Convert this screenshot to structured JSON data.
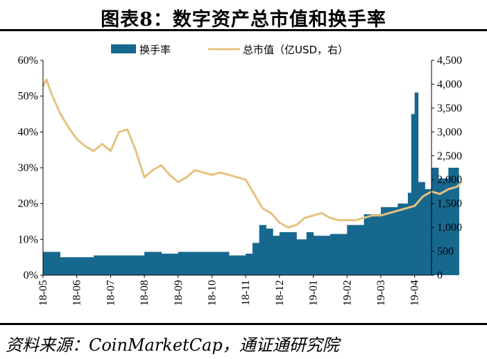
{
  "title": "图表8：数字资产总市值和换手率",
  "source": "资料来源：CoinMarketCap，通证通研究院",
  "colors": {
    "bar": "#17688f",
    "line": "#e5c27e"
  },
  "chart_data": {
    "type": "bar+line",
    "x_labels": [
      "18-05",
      "18-06",
      "18-07",
      "18-08",
      "18-09",
      "18-10",
      "18-11",
      "18-12",
      "19-01",
      "19-02",
      "19-03",
      "19-04"
    ],
    "left_axis": {
      "ticks": [
        "0%",
        "10%",
        "20%",
        "30%",
        "40%",
        "50%",
        "60%"
      ],
      "ylim": [
        0,
        60
      ],
      "unit": "%"
    },
    "right_axis": {
      "ticks": [
        "0",
        "500",
        "1,000",
        "1,500",
        "2,000",
        "2,500",
        "3,000",
        "3,500",
        "4,000",
        "4,500"
      ],
      "ylim": [
        0,
        4500
      ]
    },
    "series": [
      {
        "name": "换手率",
        "type": "bar",
        "axis": "left",
        "x": [
          0.0,
          0.5,
          1.0,
          1.5,
          2.0,
          2.5,
          3.0,
          3.5,
          4.0,
          4.5,
          5.0,
          5.5,
          6.0,
          6.2,
          6.4,
          6.6,
          6.8,
          7.0,
          7.3,
          7.5,
          7.8,
          8.0,
          8.5,
          9.0,
          9.5,
          10.0,
          10.5,
          10.8,
          10.9,
          11.0,
          11.1,
          11.3,
          11.5,
          11.7,
          12.0,
          12.3
        ],
        "values": [
          6.5,
          5,
          5,
          5.5,
          5.5,
          5.5,
          6.5,
          6,
          6.5,
          6.5,
          6.5,
          5.5,
          6,
          9,
          14,
          13,
          11,
          12,
          12,
          10,
          12,
          11,
          11.5,
          14,
          17,
          19,
          20,
          23,
          45,
          51,
          26,
          24,
          30,
          27,
          30,
          28
        ]
      },
      {
        "name": "总市值（亿USD，右）",
        "type": "line",
        "axis": "right",
        "x": [
          0.0,
          0.1,
          0.25,
          0.5,
          0.75,
          1.0,
          1.25,
          1.5,
          1.75,
          2.0,
          2.25,
          2.5,
          2.75,
          3.0,
          3.25,
          3.5,
          3.75,
          4.0,
          4.25,
          4.5,
          4.75,
          5.0,
          5.25,
          5.5,
          5.75,
          6.0,
          6.25,
          6.5,
          6.75,
          7.0,
          7.25,
          7.5,
          7.75,
          8.0,
          8.25,
          8.5,
          8.75,
          9.0,
          9.25,
          9.5,
          9.75,
          10.0,
          10.25,
          10.5,
          10.75,
          11.0,
          11.25,
          11.5,
          11.75,
          12.0,
          12.25,
          12.4
        ],
        "values": [
          3950,
          4100,
          3800,
          3400,
          3100,
          2850,
          2700,
          2600,
          2750,
          2600,
          3000,
          3050,
          2600,
          2050,
          2200,
          2300,
          2100,
          1950,
          2050,
          2200,
          2150,
          2100,
          2150,
          2100,
          2050,
          2000,
          1700,
          1400,
          1300,
          1100,
          1000,
          1050,
          1200,
          1250,
          1300,
          1200,
          1150,
          1150,
          1150,
          1200,
          1250,
          1250,
          1300,
          1350,
          1400,
          1450,
          1650,
          1750,
          1700,
          1800,
          1850,
          1950
        ]
      }
    ],
    "grid": false,
    "legend_position": "top"
  }
}
